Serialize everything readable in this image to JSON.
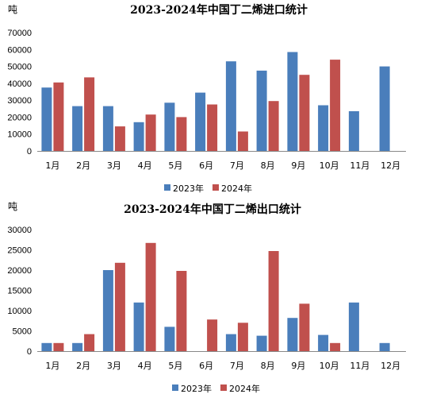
{
  "colors": {
    "series_2023": "#4a7ebb",
    "series_2024": "#c0504d",
    "axis": "#888888"
  },
  "chart_data": [
    {
      "type": "bar",
      "title": "2023-2024年中国丁二烯进口统计",
      "unit": "吨",
      "categories": [
        "1月",
        "2月",
        "3月",
        "4月",
        "5月",
        "6月",
        "7月",
        "8月",
        "9月",
        "10月",
        "11月",
        "12月"
      ],
      "y_ticks": [
        "0",
        "10000",
        "20000",
        "30000",
        "40000",
        "50000",
        "60000",
        "70000"
      ],
      "ylim": [
        0,
        70000
      ],
      "legend_position": "bottom-center",
      "series": [
        {
          "name": "2023年",
          "values": [
            37500,
            26500,
            26500,
            17000,
            28500,
            34500,
            53000,
            47500,
            58500,
            27000,
            23500,
            50000
          ]
        },
        {
          "name": "2024年",
          "values": [
            40500,
            43500,
            14500,
            21500,
            20000,
            27500,
            11500,
            29500,
            45000,
            54000,
            null,
            null
          ]
        }
      ]
    },
    {
      "type": "bar",
      "title": "2023-2024年中国丁二烯出口统计",
      "unit": "吨",
      "categories": [
        "1月",
        "2月",
        "3月",
        "4月",
        "5月",
        "6月",
        "7月",
        "8月",
        "9月",
        "10月",
        "11月",
        "12月"
      ],
      "y_ticks": [
        "0",
        "5000",
        "10000",
        "15000",
        "20000",
        "25000",
        "30000"
      ],
      "ylim": [
        0,
        30000
      ],
      "legend_position": "bottom-center",
      "series": [
        {
          "name": "2023年",
          "values": [
            2000,
            2000,
            20000,
            12000,
            6000,
            null,
            4200,
            3800,
            8200,
            4000,
            12000,
            2000
          ]
        },
        {
          "name": "2024年",
          "values": [
            2000,
            4200,
            21800,
            26700,
            19800,
            7800,
            7000,
            24700,
            11700,
            2000,
            null,
            null
          ]
        }
      ]
    }
  ]
}
